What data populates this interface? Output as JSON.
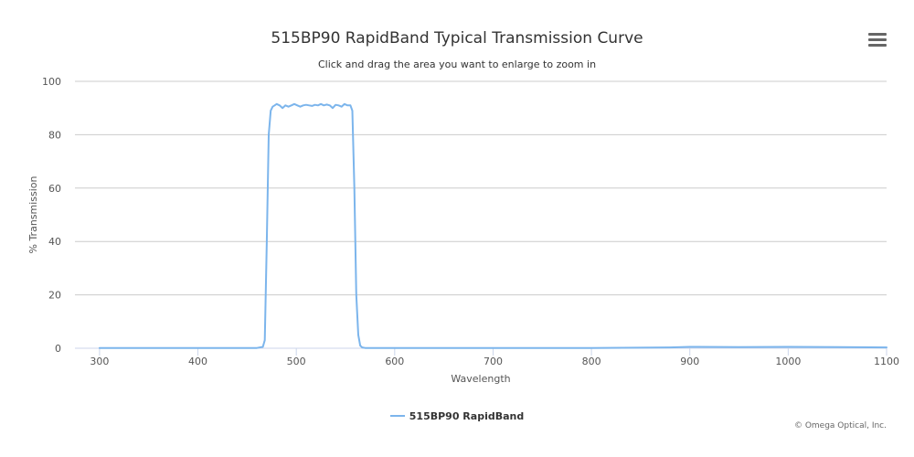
{
  "title": "515BP90 RapidBand Typical Transmission Curve",
  "subtitle": "Click and drag the area you want to enlarge to zoom in",
  "credits": "© Omega Optical, Inc.",
  "menu_icon": "hamburger-menu-icon",
  "colors": {
    "series": "#7cb5ec",
    "grid": "#cccccc",
    "axis": "#ccd6eb"
  },
  "chart_data": {
    "type": "line",
    "xlabel": "Wavelength",
    "ylabel": "% Transmission",
    "xlim": [
      275,
      1100
    ],
    "ylim": [
      0,
      100
    ],
    "xticks": [
      300,
      400,
      500,
      600,
      700,
      800,
      900,
      1000,
      1100
    ],
    "yticks": [
      0,
      20,
      40,
      60,
      80,
      100
    ],
    "grid": true,
    "legend_position": "bottom-center",
    "series": [
      {
        "name": "515BP90 RapidBand",
        "x": [
          300,
          400,
          460,
          466,
          468,
          470,
          472,
          474,
          476,
          478,
          480,
          483,
          486,
          489,
          492,
          495,
          498,
          501,
          504,
          507,
          510,
          513,
          516,
          519,
          522,
          525,
          528,
          531,
          534,
          537,
          540,
          543,
          546,
          549,
          552,
          555,
          557,
          559,
          561,
          563,
          565,
          567,
          570,
          600,
          700,
          800,
          880,
          900,
          950,
          1000,
          1050,
          1100
        ],
        "y": [
          0.1,
          0.1,
          0.1,
          0.5,
          3,
          40,
          80,
          89,
          90.5,
          91,
          91.5,
          91,
          90,
          91,
          90.5,
          91,
          91.5,
          91,
          90.5,
          91,
          91.2,
          91,
          90.8,
          91.2,
          91,
          91.5,
          91,
          91.3,
          91,
          90,
          91.2,
          91,
          90.5,
          91.5,
          91,
          91,
          89,
          60,
          20,
          5,
          1,
          0.3,
          0.1,
          0.1,
          0.1,
          0.1,
          0.3,
          0.5,
          0.4,
          0.5,
          0.4,
          0.3
        ]
      }
    ]
  }
}
